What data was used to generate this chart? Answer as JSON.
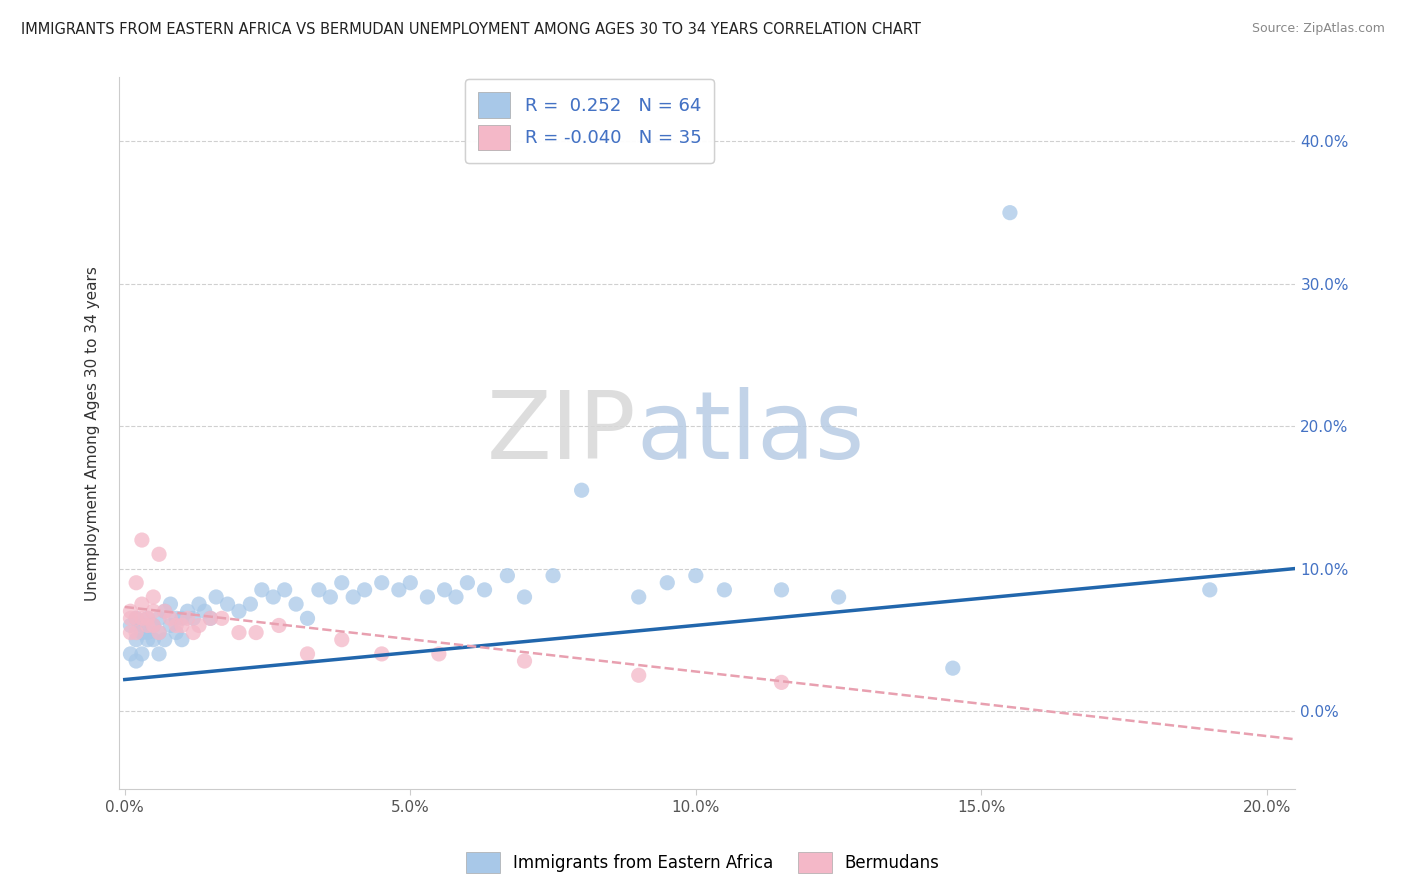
{
  "title": "IMMIGRANTS FROM EASTERN AFRICA VS BERMUDAN UNEMPLOYMENT AMONG AGES 30 TO 34 YEARS CORRELATION CHART",
  "source": "Source: ZipAtlas.com",
  "ylabel": "Unemployment Among Ages 30 to 34 years",
  "xlabel": "",
  "xlim": [
    -0.001,
    0.205
  ],
  "ylim": [
    -0.055,
    0.445
  ],
  "yticks": [
    0.0,
    0.1,
    0.2,
    0.3,
    0.4
  ],
  "ytick_labels": [
    "0.0%",
    "10.0%",
    "20.0%",
    "30.0%",
    "40.0%"
  ],
  "xticks": [
    0.0,
    0.05,
    0.1,
    0.15,
    0.2
  ],
  "xtick_labels": [
    "0.0%",
    "5.0%",
    "10.0%",
    "15.0%",
    "20.0%"
  ],
  "blue_color": "#a8c8e8",
  "pink_color": "#f4b8c8",
  "trend_blue": "#2166ac",
  "trend_pink": "#e8a0b0",
  "watermark_zip": "ZIP",
  "watermark_atlas": "atlas",
  "blue_scatter_x": [
    0.001,
    0.001,
    0.002,
    0.002,
    0.002,
    0.003,
    0.003,
    0.003,
    0.004,
    0.004,
    0.004,
    0.005,
    0.005,
    0.006,
    0.006,
    0.006,
    0.007,
    0.007,
    0.008,
    0.008,
    0.009,
    0.009,
    0.01,
    0.01,
    0.011,
    0.012,
    0.013,
    0.014,
    0.015,
    0.016,
    0.018,
    0.02,
    0.022,
    0.024,
    0.026,
    0.028,
    0.03,
    0.032,
    0.034,
    0.036,
    0.038,
    0.04,
    0.042,
    0.045,
    0.048,
    0.05,
    0.053,
    0.056,
    0.058,
    0.06,
    0.063,
    0.067,
    0.07,
    0.075,
    0.08,
    0.09,
    0.095,
    0.1,
    0.105,
    0.115,
    0.125,
    0.145,
    0.155,
    0.19
  ],
  "blue_scatter_y": [
    0.04,
    0.06,
    0.05,
    0.065,
    0.035,
    0.04,
    0.06,
    0.055,
    0.05,
    0.065,
    0.055,
    0.06,
    0.05,
    0.055,
    0.065,
    0.04,
    0.07,
    0.05,
    0.06,
    0.075,
    0.055,
    0.065,
    0.065,
    0.05,
    0.07,
    0.065,
    0.075,
    0.07,
    0.065,
    0.08,
    0.075,
    0.07,
    0.075,
    0.085,
    0.08,
    0.085,
    0.075,
    0.065,
    0.085,
    0.08,
    0.09,
    0.08,
    0.085,
    0.09,
    0.085,
    0.09,
    0.08,
    0.085,
    0.08,
    0.09,
    0.085,
    0.095,
    0.08,
    0.095,
    0.155,
    0.08,
    0.09,
    0.095,
    0.085,
    0.085,
    0.08,
    0.03,
    0.35,
    0.085
  ],
  "pink_scatter_x": [
    0.001,
    0.001,
    0.001,
    0.002,
    0.002,
    0.002,
    0.003,
    0.003,
    0.003,
    0.004,
    0.004,
    0.005,
    0.005,
    0.005,
    0.006,
    0.006,
    0.007,
    0.008,
    0.009,
    0.01,
    0.011,
    0.012,
    0.013,
    0.015,
    0.017,
    0.02,
    0.023,
    0.027,
    0.032,
    0.038,
    0.045,
    0.055,
    0.07,
    0.09,
    0.115
  ],
  "pink_scatter_y": [
    0.055,
    0.065,
    0.07,
    0.055,
    0.065,
    0.09,
    0.065,
    0.075,
    0.12,
    0.06,
    0.065,
    0.06,
    0.07,
    0.08,
    0.055,
    0.11,
    0.07,
    0.065,
    0.06,
    0.06,
    0.065,
    0.055,
    0.06,
    0.065,
    0.065,
    0.055,
    0.055,
    0.06,
    0.04,
    0.05,
    0.04,
    0.04,
    0.035,
    0.025,
    0.02
  ],
  "blue_trend_x": [
    0.0,
    0.205
  ],
  "blue_trend_y": [
    0.022,
    0.1
  ],
  "pink_trend_x": [
    0.0,
    0.205
  ],
  "pink_trend_y": [
    0.073,
    -0.02
  ],
  "legend_label1": "Immigrants from Eastern Africa",
  "legend_label2": "Bermudans",
  "tick_color": "#4472c4",
  "grid_color": "#d0d0d0"
}
